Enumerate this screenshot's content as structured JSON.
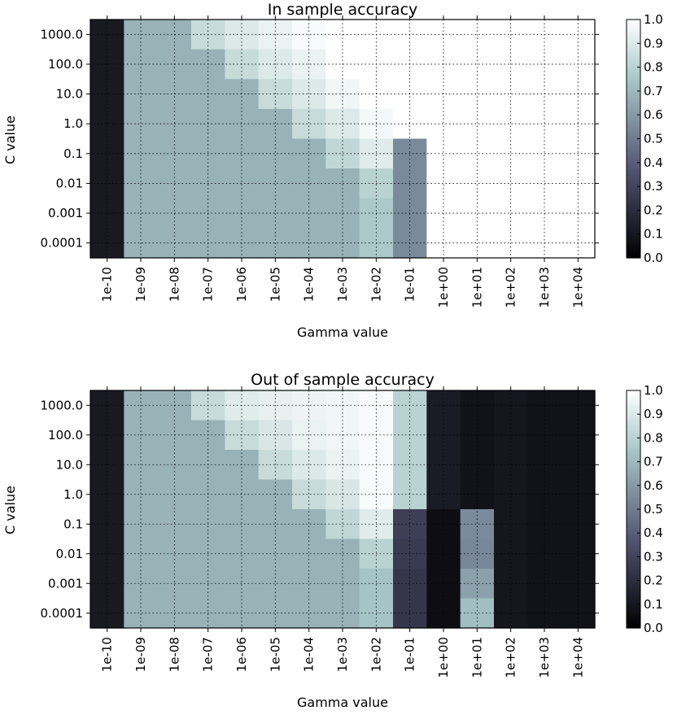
{
  "chart_data": [
    {
      "type": "heatmap",
      "title": "In sample accuracy",
      "xlabel": "Gamma value",
      "ylabel": "C value",
      "x_categories": [
        "1e-10",
        "1e-09",
        "1e-08",
        "1e-07",
        "1e-06",
        "1e-05",
        "1e-04",
        "1e-03",
        "1e-02",
        "1e-01",
        "1e+00",
        "1e+01",
        "1e+02",
        "1e+03",
        "1e+04"
      ],
      "y_categories": [
        "1000.0",
        "100.0",
        "10.0",
        "1.0",
        "0.1",
        "0.01",
        "0.001",
        "0.0001"
      ],
      "values": [
        [
          0.11,
          0.68,
          0.68,
          0.84,
          0.9,
          0.94,
          0.98,
          1.0,
          1.0,
          1.0,
          1.0,
          1.0,
          1.0,
          1.0,
          1.0
        ],
        [
          0.11,
          0.68,
          0.68,
          0.68,
          0.84,
          0.9,
          0.94,
          1.0,
          1.0,
          1.0,
          1.0,
          1.0,
          1.0,
          1.0,
          1.0
        ],
        [
          0.11,
          0.68,
          0.68,
          0.68,
          0.68,
          0.84,
          0.9,
          0.96,
          1.0,
          1.0,
          1.0,
          1.0,
          1.0,
          1.0,
          1.0
        ],
        [
          0.11,
          0.68,
          0.68,
          0.68,
          0.68,
          0.68,
          0.84,
          0.9,
          0.97,
          1.0,
          1.0,
          1.0,
          1.0,
          1.0,
          1.0
        ],
        [
          0.11,
          0.68,
          0.68,
          0.68,
          0.68,
          0.68,
          0.68,
          0.82,
          0.91,
          0.55,
          1.0,
          1.0,
          1.0,
          1.0,
          1.0
        ],
        [
          0.11,
          0.68,
          0.68,
          0.68,
          0.68,
          0.68,
          0.68,
          0.68,
          0.8,
          0.55,
          1.0,
          1.0,
          1.0,
          1.0,
          1.0
        ],
        [
          0.11,
          0.68,
          0.68,
          0.68,
          0.68,
          0.68,
          0.68,
          0.68,
          0.76,
          0.55,
          1.0,
          1.0,
          1.0,
          1.0,
          1.0
        ],
        [
          0.11,
          0.68,
          0.68,
          0.68,
          0.68,
          0.68,
          0.68,
          0.68,
          0.76,
          0.55,
          1.0,
          1.0,
          1.0,
          1.0,
          1.0
        ]
      ],
      "colorbar": {
        "min": 0.0,
        "max": 1.0,
        "ticks": [
          "0.0",
          "0.1",
          "0.2",
          "0.3",
          "0.4",
          "0.5",
          "0.6",
          "0.7",
          "0.8",
          "0.9",
          "1.0"
        ]
      },
      "grid": true,
      "colormap": "bone"
    },
    {
      "type": "heatmap",
      "title": "Out of sample accuracy",
      "xlabel": "Gamma value",
      "ylabel": "C value",
      "x_categories": [
        "1e-10",
        "1e-09",
        "1e-08",
        "1e-07",
        "1e-06",
        "1e-05",
        "1e-04",
        "1e-03",
        "1e-02",
        "1e-01",
        "1e+00",
        "1e+01",
        "1e+02",
        "1e+03",
        "1e+04"
      ],
      "y_categories": [
        "1000.0",
        "100.0",
        "10.0",
        "1.0",
        "0.1",
        "0.01",
        "0.001",
        "0.0001"
      ],
      "values": [
        [
          0.11,
          0.68,
          0.68,
          0.84,
          0.91,
          0.93,
          0.95,
          0.96,
          0.98,
          0.8,
          0.12,
          0.08,
          0.1,
          0.08,
          0.08
        ],
        [
          0.11,
          0.68,
          0.68,
          0.68,
          0.84,
          0.89,
          0.94,
          0.96,
          0.98,
          0.8,
          0.12,
          0.08,
          0.1,
          0.08,
          0.08
        ],
        [
          0.11,
          0.68,
          0.68,
          0.68,
          0.68,
          0.84,
          0.9,
          0.94,
          0.98,
          0.8,
          0.12,
          0.08,
          0.1,
          0.08,
          0.08
        ],
        [
          0.11,
          0.68,
          0.68,
          0.68,
          0.68,
          0.68,
          0.84,
          0.89,
          0.98,
          0.8,
          0.12,
          0.08,
          0.1,
          0.08,
          0.08
        ],
        [
          0.11,
          0.68,
          0.68,
          0.68,
          0.68,
          0.68,
          0.68,
          0.82,
          0.91,
          0.28,
          0.06,
          0.55,
          0.1,
          0.08,
          0.08
        ],
        [
          0.11,
          0.68,
          0.68,
          0.68,
          0.68,
          0.68,
          0.68,
          0.68,
          0.8,
          0.26,
          0.06,
          0.54,
          0.1,
          0.08,
          0.08
        ],
        [
          0.11,
          0.68,
          0.68,
          0.68,
          0.68,
          0.68,
          0.68,
          0.68,
          0.74,
          0.24,
          0.06,
          0.62,
          0.1,
          0.08,
          0.08
        ],
        [
          0.11,
          0.68,
          0.68,
          0.68,
          0.68,
          0.68,
          0.68,
          0.68,
          0.74,
          0.24,
          0.06,
          0.72,
          0.1,
          0.08,
          0.08
        ]
      ],
      "colorbar": {
        "min": 0.0,
        "max": 1.0,
        "ticks": [
          "0.0",
          "0.1",
          "0.2",
          "0.3",
          "0.4",
          "0.5",
          "0.6",
          "0.7",
          "0.8",
          "0.9",
          "1.0"
        ]
      },
      "grid": true,
      "colormap": "bone"
    }
  ]
}
